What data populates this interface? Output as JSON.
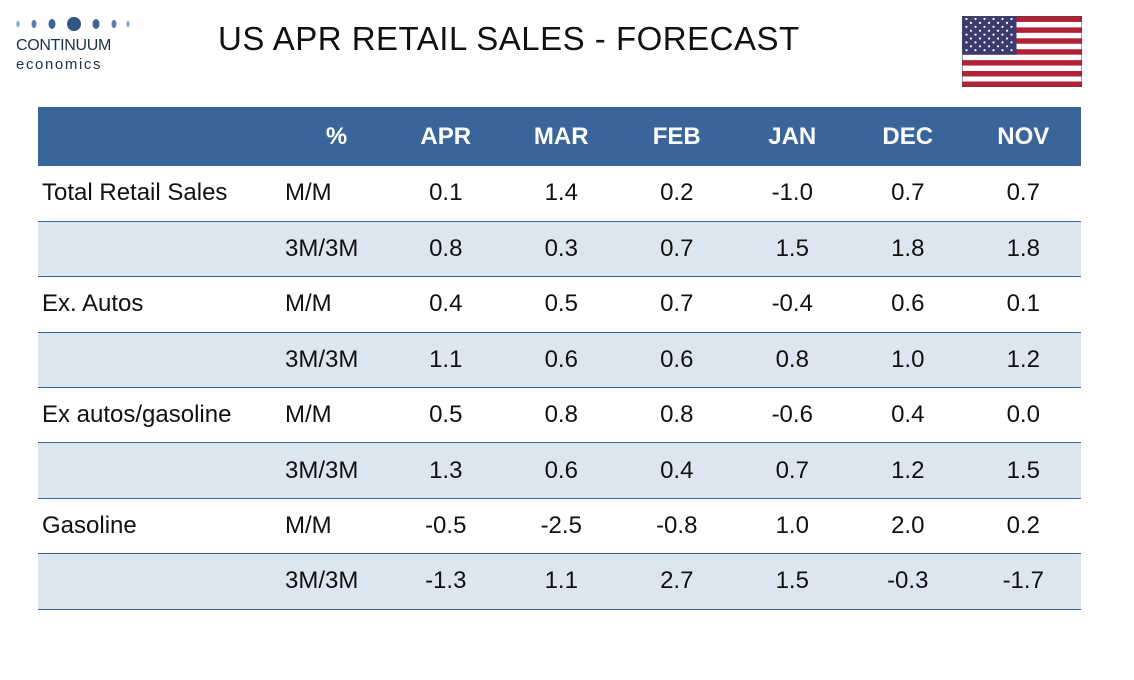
{
  "brand": {
    "name": "CONTINUUM",
    "sub": "economics"
  },
  "title": "US APR RETAIL SALES - FORECAST",
  "flag_icon": "us-flag-icon",
  "colors": {
    "header_bg": "#3a659a",
    "shaded_row": "#dce6f1",
    "brand": "#1d2f4f"
  },
  "table": {
    "headers": [
      "",
      "%",
      "APR",
      "MAR",
      "FEB",
      "JAN",
      "DEC",
      "NOV"
    ],
    "rows": [
      {
        "label": "Total Retail Sales",
        "unit": "M/M",
        "values": [
          "0.1",
          "1.4",
          "0.2",
          "-1.0",
          "0.7",
          "0.7"
        ]
      },
      {
        "label": "",
        "unit": "3M/3M",
        "values": [
          "0.8",
          "0.3",
          "0.7",
          "1.5",
          "1.8",
          "1.8"
        ]
      },
      {
        "label": "Ex. Autos",
        "unit": "M/M",
        "values": [
          "0.4",
          "0.5",
          "0.7",
          "-0.4",
          "0.6",
          "0.1"
        ]
      },
      {
        "label": "",
        "unit": "3M/3M",
        "values": [
          "1.1",
          "0.6",
          "0.6",
          "0.8",
          "1.0",
          "1.2"
        ]
      },
      {
        "label": "Ex autos/gasoline",
        "unit": "M/M",
        "values": [
          "0.5",
          "0.8",
          "0.8",
          "-0.6",
          "0.4",
          "0.0"
        ]
      },
      {
        "label": "",
        "unit": "3M/3M",
        "values": [
          "1.3",
          "0.6",
          "0.4",
          "0.7",
          "1.2",
          "1.5"
        ]
      },
      {
        "label": "Gasoline",
        "unit": "M/M",
        "values": [
          "-0.5",
          "-2.5",
          "-0.8",
          "1.0",
          "2.0",
          "0.2"
        ]
      },
      {
        "label": "",
        "unit": "3M/3M",
        "values": [
          "-1.3",
          "1.1",
          "2.7",
          "1.5",
          "-0.3",
          "-1.7"
        ]
      }
    ]
  }
}
